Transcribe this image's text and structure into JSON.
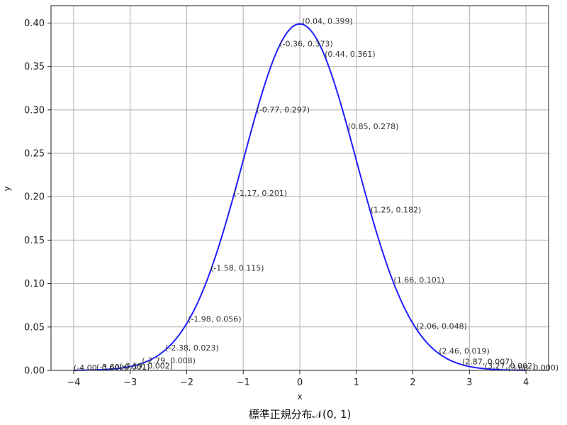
{
  "chart_data": {
    "type": "line",
    "title": "標準正規分布𝒩(0, 1)",
    "xlabel": "x",
    "ylabel": "y",
    "xlim": [
      -4.4,
      4.4
    ],
    "ylim": [
      0,
      0.42
    ],
    "grid": true,
    "color": "#1f1fff",
    "x_ticks": [
      -4,
      -3,
      -2,
      -1,
      0,
      1,
      2,
      3,
      4
    ],
    "x_tick_labels": [
      "−4",
      "−3",
      "−2",
      "−1",
      "0",
      "1",
      "2",
      "3",
      "4"
    ],
    "y_ticks": [
      0.0,
      0.05,
      0.1,
      0.15,
      0.2,
      0.25,
      0.3,
      0.35,
      0.4
    ],
    "y_tick_labels": [
      "0.00",
      "0.05",
      "0.10",
      "0.15",
      "0.20",
      "0.25",
      "0.30",
      "0.35",
      "0.40"
    ],
    "series": [
      {
        "function": "standard normal pdf",
        "x_range": [
          -4,
          4
        ]
      }
    ],
    "annotations": [
      {
        "x": -4.0,
        "y": 0.0,
        "label": "(-4.00, 0.000)"
      },
      {
        "x": -3.6,
        "y": 0.001,
        "label": "(-3.60, 0.001)"
      },
      {
        "x": -3.19,
        "y": 0.002,
        "label": "(-3.19, 0.002)"
      },
      {
        "x": -2.79,
        "y": 0.008,
        "label": "(-2.79, 0.008)"
      },
      {
        "x": -2.38,
        "y": 0.023,
        "label": "(-2.38, 0.023)"
      },
      {
        "x": -1.98,
        "y": 0.056,
        "label": "(-1.98, 0.056)"
      },
      {
        "x": -1.58,
        "y": 0.115,
        "label": "(-1.58, 0.115)"
      },
      {
        "x": -1.17,
        "y": 0.201,
        "label": "(-1.17, 0.201)"
      },
      {
        "x": -0.77,
        "y": 0.297,
        "label": "(-0.77, 0.297)"
      },
      {
        "x": -0.36,
        "y": 0.373,
        "label": "(-0.36, 0.373)"
      },
      {
        "x": 0.04,
        "y": 0.399,
        "label": "(0.04, 0.399)"
      },
      {
        "x": 0.44,
        "y": 0.361,
        "label": "(0.44, 0.361)"
      },
      {
        "x": 0.85,
        "y": 0.278,
        "label": "(0.85, 0.278)"
      },
      {
        "x": 1.25,
        "y": 0.182,
        "label": "(1.25, 0.182)"
      },
      {
        "x": 1.66,
        "y": 0.101,
        "label": "(1.66, 0.101)"
      },
      {
        "x": 2.06,
        "y": 0.048,
        "label": "(2.06, 0.048)"
      },
      {
        "x": 2.46,
        "y": 0.019,
        "label": "(2.46, 0.019)"
      },
      {
        "x": 2.87,
        "y": 0.007,
        "label": "(2.87, 0.007)"
      },
      {
        "x": 3.27,
        "y": 0.002,
        "label": "(3.27, 0.002)"
      },
      {
        "x": 3.68,
        "y": 0.0,
        "label": "(3.68, 0.000)"
      }
    ]
  }
}
